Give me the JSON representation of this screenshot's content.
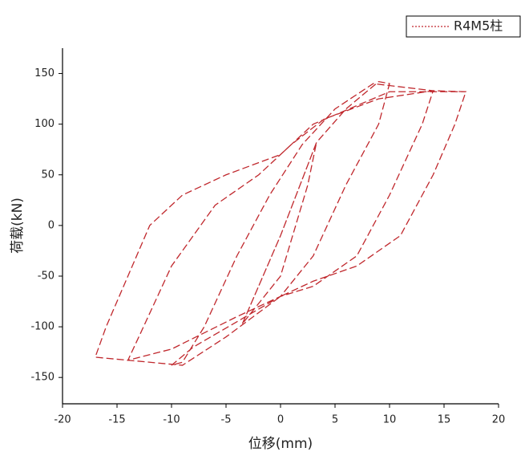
{
  "chart_data": {
    "type": "line",
    "x_label": "位移(mm)",
    "y_label": "荷载(kN)",
    "xlim": [
      -20,
      20
    ],
    "xticks": [
      -20,
      -15,
      -10,
      -5,
      0,
      5,
      10,
      15,
      20
    ],
    "ylim": [
      -176,
      175
    ],
    "yticks": [
      -150,
      -100,
      -50,
      0,
      50,
      100,
      150
    ],
    "legend": "top-right",
    "series": [
      {
        "name": "R4M5柱",
        "color": "#c0282d",
        "x": [
          -3.5,
          0,
          3.3,
          2.5,
          0,
          -3.5,
          0,
          3.3,
          6,
          9,
          10,
          9,
          6,
          3,
          0,
          -4,
          -8,
          -10,
          -9,
          -7,
          -4,
          -1,
          2,
          5,
          8.5,
          14,
          13,
          10,
          7,
          3,
          0,
          -4,
          -10,
          -14,
          -13,
          -10,
          -6,
          -2,
          1,
          4,
          9,
          14,
          17,
          16,
          14,
          11,
          7,
          3,
          0,
          -5,
          -9,
          -17,
          -16,
          -14,
          -12,
          -9,
          -5,
          0,
          3,
          10,
          17
        ],
        "values": [
          -97,
          -10,
          82,
          40,
          -50,
          -97,
          -10,
          82,
          115,
          142,
          140,
          100,
          40,
          -30,
          -70,
          -95,
          -120,
          -138,
          -135,
          -100,
          -30,
          30,
          80,
          115,
          140,
          133,
          100,
          30,
          -30,
          -60,
          -70,
          -90,
          -122,
          -133,
          -110,
          -40,
          20,
          50,
          80,
          105,
          125,
          133,
          132,
          100,
          50,
          -10,
          -40,
          -55,
          -70,
          -110,
          -138,
          -130,
          -100,
          -50,
          0,
          30,
          50,
          70,
          100,
          132,
          132
        ]
      }
    ]
  }
}
